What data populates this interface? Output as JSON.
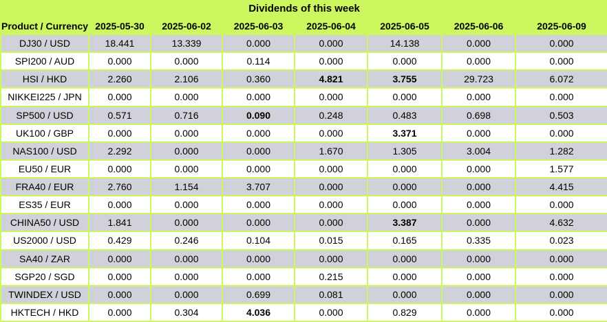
{
  "title": "Dividends of this week",
  "colors": {
    "header_green": "#CDF75F",
    "row_gray": "#D1D1D9",
    "row_white": "#FFFFFF",
    "text": "#000000"
  },
  "chart_data": {
    "type": "table",
    "title": "Dividends of this week",
    "columns": [
      "Product / Currency",
      "2025-05-30",
      "2025-06-02",
      "2025-06-03",
      "2025-06-04",
      "2025-06-05",
      "2025-06-06",
      "2025-06-09"
    ],
    "rows": [
      {
        "label": "DJ30 / USD",
        "values": [
          "18.441",
          "13.339",
          "0.000",
          "0.000",
          "14.138",
          "0.000",
          "0.000"
        ],
        "bold_cols": []
      },
      {
        "label": "SPI200 / AUD",
        "values": [
          "0.000",
          "0.000",
          "0.114",
          "0.000",
          "0.000",
          "0.000",
          "0.000"
        ],
        "bold_cols": []
      },
      {
        "label": "HSI / HKD",
        "values": [
          "2.260",
          "2.106",
          "0.360",
          "4.821",
          "3.755",
          "29.723",
          "6.072"
        ],
        "bold_cols": [
          3,
          4
        ]
      },
      {
        "label": "NIKKEI225 / JPN",
        "values": [
          "0.000",
          "0.000",
          "0.000",
          "0.000",
          "0.000",
          "0.000",
          "0.000"
        ],
        "bold_cols": []
      },
      {
        "label": "SP500 / USD",
        "values": [
          "0.571",
          "0.716",
          "0.090",
          "0.248",
          "0.483",
          "0.698",
          "0.503"
        ],
        "bold_cols": [
          2
        ]
      },
      {
        "label": "UK100 / GBP",
        "values": [
          "0.000",
          "0.000",
          "0.000",
          "0.000",
          "3.371",
          "0.000",
          "0.000"
        ],
        "bold_cols": [
          4
        ]
      },
      {
        "label": "NAS100 / USD",
        "values": [
          "2.292",
          "0.000",
          "0.000",
          "1.670",
          "1.305",
          "3.004",
          "1.282"
        ],
        "bold_cols": []
      },
      {
        "label": "EU50 / EUR",
        "values": [
          "0.000",
          "0.000",
          "0.000",
          "0.000",
          "0.000",
          "0.000",
          "1.577"
        ],
        "bold_cols": []
      },
      {
        "label": "FRA40 / EUR",
        "values": [
          "2.760",
          "1.154",
          "3.707",
          "0.000",
          "0.000",
          "0.000",
          "4.415"
        ],
        "bold_cols": []
      },
      {
        "label": "ES35 / EUR",
        "values": [
          "0.000",
          "0.000",
          "0.000",
          "0.000",
          "0.000",
          "0.000",
          "0.000"
        ],
        "bold_cols": []
      },
      {
        "label": "CHINA50 / USD",
        "values": [
          "1.841",
          "0.000",
          "0.000",
          "0.000",
          "3.387",
          "0.000",
          "4.632"
        ],
        "bold_cols": [
          4
        ]
      },
      {
        "label": "US2000 / USD",
        "values": [
          "0.429",
          "0.246",
          "0.104",
          "0.015",
          "0.165",
          "0.335",
          "0.023"
        ],
        "bold_cols": []
      },
      {
        "label": "SA40 / ZAR",
        "values": [
          "0.000",
          "0.000",
          "0.000",
          "0.000",
          "0.000",
          "0.000",
          "0.000"
        ],
        "bold_cols": []
      },
      {
        "label": "SGP20 / SGD",
        "values": [
          "0.000",
          "0.000",
          "0.000",
          "0.215",
          "0.000",
          "0.000",
          "0.000"
        ],
        "bold_cols": []
      },
      {
        "label": "TWINDEX / USD",
        "values": [
          "0.000",
          "0.000",
          "0.699",
          "0.081",
          "0.000",
          "0.000",
          "0.000"
        ],
        "bold_cols": []
      },
      {
        "label": "HKTECH / HKD",
        "values": [
          "0.000",
          "0.304",
          "4.036",
          "0.000",
          "0.829",
          "0.000",
          "0.000"
        ],
        "bold_cols": [
          2
        ]
      }
    ]
  }
}
